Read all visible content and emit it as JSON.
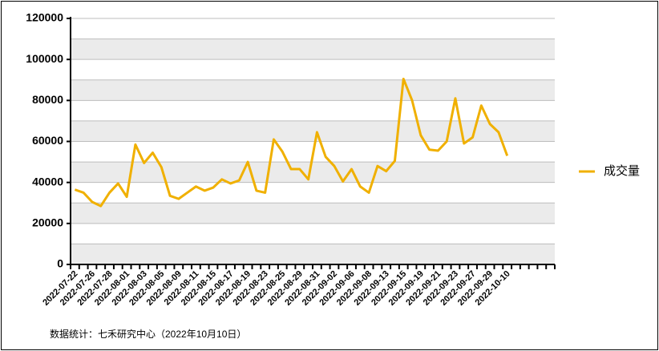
{
  "chart_data": {
    "type": "line",
    "categories": [
      "2022-07-22",
      null,
      "2022-07-26",
      null,
      "2022-07-28",
      null,
      "2022-08-01",
      null,
      "2022-08-03",
      null,
      "2022-08-05",
      null,
      "2022-08-09",
      null,
      "2022-08-11",
      null,
      "2022-08-15",
      null,
      "2022-08-17",
      null,
      "2022-08-19",
      null,
      "2022-08-23",
      null,
      "2022-08-25",
      null,
      "2022-08-29",
      null,
      "2022-08-31",
      null,
      "2022-09-02",
      null,
      "2022-09-06",
      null,
      "2022-09-08",
      null,
      "2022-09-13",
      null,
      "2022-09-15",
      null,
      "2022-09-19",
      null,
      "2022-09-21",
      null,
      "2022-09-23",
      null,
      "2022-09-27",
      null,
      "2022-09-29",
      null,
      "2022-10-10",
      null,
      null,
      null,
      null,
      null
    ],
    "series": [
      {
        "name": "成交量",
        "color": "#f0b000",
        "values": [
          36500,
          35000,
          30500,
          28500,
          35000,
          39500,
          33000,
          58500,
          49500,
          54500,
          47500,
          33500,
          32000,
          35000,
          38000,
          36000,
          37500,
          41500,
          39500,
          41000,
          50000,
          36000,
          35000,
          61000,
          55000,
          46500,
          46500,
          41500,
          64500,
          52500,
          48000,
          40500,
          46500,
          38000,
          35000,
          48000,
          45500,
          50500,
          90500,
          80000,
          63000,
          56000,
          55500,
          60000,
          81000,
          59000,
          62000,
          77500,
          68500,
          64500,
          53000,
          null,
          null,
          null,
          null,
          null
        ]
      }
    ],
    "ylim": [
      0,
      120000
    ],
    "yticks": [
      0,
      20000,
      40000,
      60000,
      80000,
      100000,
      120000
    ],
    "grid": true,
    "legend": "right",
    "source": "数据统计：七禾研究中心（2022年10月10日）"
  }
}
